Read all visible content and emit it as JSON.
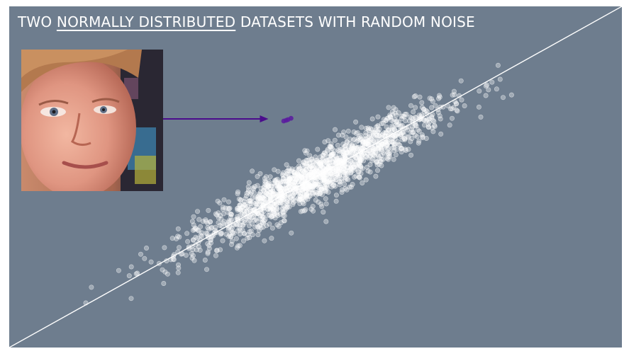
{
  "chart_data": {
    "type": "scatter",
    "title_parts": [
      "TWO ",
      "NORMALLY DISTRIBUTED",
      " DATASETS WITH RANDOM NOISE"
    ],
    "xlabel": "",
    "ylabel": "",
    "xlim": [
      0,
      100
    ],
    "ylim": [
      0,
      100
    ],
    "grid": false,
    "legend": "none",
    "trend_line": {
      "x": [
        0,
        100
      ],
      "y": [
        0,
        100
      ]
    },
    "main_series": {
      "name": "",
      "color": "#ffffff",
      "center": [
        50,
        50
      ],
      "spread_along_line": 14,
      "spread_across_line": 2.6,
      "count": 1800
    },
    "outlier_points": [
      {
        "x": 44.8,
        "y": 66.4
      },
      {
        "x": 45.5,
        "y": 66.8
      },
      {
        "x": 46.0,
        "y": 67.2
      },
      {
        "x": 45.2,
        "y": 66.6
      }
    ],
    "annotation": {
      "type": "arrow",
      "color": "#4b0c8c",
      "from_image": "blinking-man-meme",
      "to": {
        "x": 42.3,
        "y": 67.0
      }
    },
    "colors": {
      "background": "#6e7d8e",
      "points": "#ffffff",
      "outliers": "#5b1aa0",
      "arrow": "#4b0c8c"
    }
  }
}
